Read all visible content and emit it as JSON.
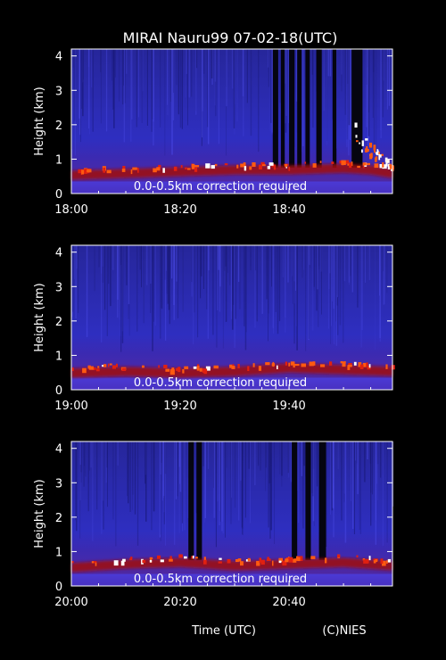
{
  "title": "MIRAI Nauru99 07-02-18(UTC)",
  "footer": {
    "xlabel": "Time (UTC)",
    "credit": "(C)NIES"
  },
  "colors": {
    "background": "#000000",
    "text": "#ffffff",
    "low": "#2a2ad8",
    "mid": "#a01010",
    "high": "#ff5a10",
    "peak": "#ffffff"
  },
  "chart_data": [
    {
      "type": "heatmap",
      "ylabel": "Height (km)",
      "ylim": [
        0,
        4.2
      ],
      "yticks": [
        "0",
        "1",
        "2",
        "3",
        "4"
      ],
      "xlim": [
        "18:00",
        "18:59"
      ],
      "xticks": [
        "18:00",
        "18:20",
        "18:40"
      ],
      "annotation": "0.0-0.5km correction required",
      "cloud_base_km": [
        [
          0,
          0.55
        ],
        [
          10,
          0.6
        ],
        [
          20,
          0.65
        ],
        [
          30,
          0.7
        ],
        [
          40,
          0.7
        ],
        [
          50,
          0.75
        ],
        [
          55,
          0.7
        ],
        [
          59,
          0.6
        ]
      ],
      "dark_columns_min": [
        [
          37,
          38
        ],
        [
          38.5,
          39.2
        ],
        [
          40,
          41
        ],
        [
          41.5,
          42.3
        ],
        [
          43,
          43.8
        ],
        [
          45,
          46
        ],
        [
          48,
          48.7
        ],
        [
          51.5,
          53.5
        ]
      ],
      "high_echo": {
        "x_min": [
          52,
          59
        ],
        "y_km": [
          0.8,
          2.1
        ]
      }
    },
    {
      "type": "heatmap",
      "ylabel": "Height (km)",
      "ylim": [
        0,
        4.2
      ],
      "yticks": [
        "0",
        "1",
        "2",
        "3",
        "4"
      ],
      "xlim": [
        "19:00",
        "19:59"
      ],
      "xticks": [
        "19:00",
        "19:20",
        "19:40"
      ],
      "annotation": "0.0-0.5km correction required",
      "cloud_base_km": [
        [
          0,
          0.5
        ],
        [
          10,
          0.55
        ],
        [
          20,
          0.5
        ],
        [
          30,
          0.55
        ],
        [
          40,
          0.65
        ],
        [
          50,
          0.6
        ],
        [
          59,
          0.55
        ]
      ],
      "dark_columns_min": [],
      "high_echo": null
    },
    {
      "type": "heatmap",
      "ylabel": "Height (km)",
      "ylim": [
        0,
        4.2
      ],
      "yticks": [
        "0",
        "1",
        "2",
        "3",
        "4"
      ],
      "xlim": [
        "20:00",
        "20:59"
      ],
      "xticks": [
        "20:00",
        "20:20",
        "20:40"
      ],
      "annotation": "0.0-0.5km correction required",
      "cloud_base_km": [
        [
          0,
          0.55
        ],
        [
          10,
          0.65
        ],
        [
          20,
          0.7
        ],
        [
          30,
          0.6
        ],
        [
          40,
          0.65
        ],
        [
          50,
          0.7
        ],
        [
          59,
          0.6
        ]
      ],
      "dark_columns_min": [
        [
          21.5,
          22.5
        ],
        [
          23,
          24
        ],
        [
          40.5,
          41.5
        ],
        [
          43,
          44
        ],
        [
          45.5,
          46.8
        ]
      ],
      "high_echo": null
    }
  ]
}
